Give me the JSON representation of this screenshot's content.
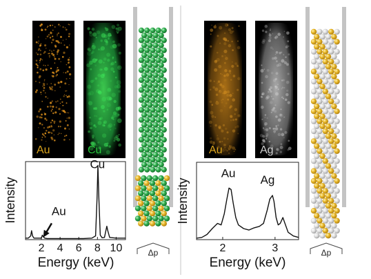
{
  "colors": {
    "au": "#d9a31c",
    "au_map": "#c8831a",
    "cu": "#1f9d3c",
    "cu_map": "#27c23a",
    "ag": "#cfcfcf",
    "ag_map": "#b8b8b8",
    "wall": "#c4c4c4",
    "divider": "#d8d8d8",
    "curve": "#111111"
  },
  "left_panel": {
    "map_au_label": "Au",
    "map_cu_label": "Cu",
    "pressure_label": "Δp"
  },
  "right_panel": {
    "map_au_label": "Au",
    "map_ag_label": "Ag",
    "pressure_label": "Δp"
  },
  "chart_data": [
    {
      "type": "line",
      "title": "",
      "xlabel": "Energy (keV)",
      "ylabel": "Intensity",
      "xlim": [
        0.3,
        11
      ],
      "ylim": [
        0,
        1.05
      ],
      "xticks": [
        2,
        4,
        6,
        8,
        10
      ],
      "tick_labels": [
        "2",
        "4",
        "6",
        "8",
        "10"
      ],
      "grid": false,
      "annotations": [
        {
          "text": "Cu",
          "x": 7.2,
          "y": 0.96
        },
        {
          "text": "Au",
          "x": 3.1,
          "y": 0.33
        }
      ],
      "arrow": {
        "from": [
          3.1,
          0.22
        ],
        "to": [
          2.2,
          0.03
        ]
      },
      "series": [
        {
          "x": [
            0.3,
            0.6,
            0.85,
            0.95,
            1.05,
            1.2,
            1.5,
            2.0,
            2.1,
            2.2,
            2.35,
            2.6,
            3.5,
            5.0,
            6.5,
            7.4,
            7.8,
            7.95,
            8.05,
            8.15,
            8.3,
            8.5,
            8.75,
            8.9,
            9.0,
            9.1,
            9.3,
            10.0,
            11.0
          ],
          "values": [
            0.02,
            0.02,
            0.05,
            0.12,
            0.05,
            0.02,
            0.02,
            0.02,
            0.06,
            0.04,
            0.02,
            0.015,
            0.015,
            0.015,
            0.015,
            0.02,
            0.05,
            0.55,
            1.0,
            0.55,
            0.06,
            0.025,
            0.03,
            0.12,
            0.18,
            0.12,
            0.03,
            0.02,
            0.02
          ]
        }
      ]
    },
    {
      "type": "line",
      "title": "",
      "xlabel": "Energy (keV)",
      "ylabel": "Intensity",
      "xlim": [
        1.5,
        3.45
      ],
      "ylim": [
        0,
        1.05
      ],
      "xticks": [
        2,
        3
      ],
      "tick_labels": [
        "2",
        "3"
      ],
      "grid": false,
      "annotations": [
        {
          "text": "Au",
          "x": 1.97,
          "y": 0.85
        },
        {
          "text": "Ag",
          "x": 2.72,
          "y": 0.76
        }
      ],
      "series": [
        {
          "x": [
            1.5,
            1.6,
            1.7,
            1.8,
            1.9,
            1.97,
            2.03,
            2.08,
            2.12,
            2.16,
            2.2,
            2.25,
            2.3,
            2.4,
            2.5,
            2.6,
            2.7,
            2.78,
            2.85,
            2.9,
            2.95,
            2.98,
            3.02,
            3.06,
            3.1,
            3.15,
            3.2,
            3.25,
            3.35,
            3.45
          ],
          "values": [
            0.02,
            0.03,
            0.07,
            0.15,
            0.22,
            0.2,
            0.35,
            0.55,
            0.7,
            0.68,
            0.5,
            0.3,
            0.2,
            0.15,
            0.13,
            0.16,
            0.18,
            0.22,
            0.4,
            0.55,
            0.6,
            0.52,
            0.3,
            0.2,
            0.22,
            0.3,
            0.2,
            0.1,
            0.05,
            0.03
          ]
        }
      ]
    }
  ]
}
